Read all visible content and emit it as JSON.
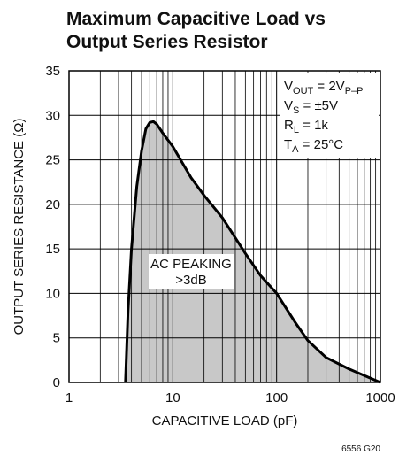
{
  "chart_data": {
    "type": "area",
    "title": [
      "Maximum Capacitive Load vs",
      "Output Series Resistor"
    ],
    "x_label": "CAPACITIVE LOAD (pF)",
    "y_label": "OUTPUT SERIES RESISTANCE (Ω)",
    "x_log": true,
    "grid": true,
    "xlim": [
      1,
      1000
    ],
    "xticks": [
      1,
      10,
      100,
      1000
    ],
    "xminorticks": [
      2,
      3,
      4,
      5,
      6,
      7,
      8,
      9,
      20,
      30,
      40,
      50,
      60,
      70,
      80,
      90,
      200,
      300,
      400,
      500,
      600,
      700,
      800,
      900
    ],
    "ylim": [
      0,
      35
    ],
    "yticks": [
      0,
      5,
      10,
      15,
      20,
      25,
      30,
      35
    ],
    "fill_color": "#c8c8c8",
    "line_color": "#000000",
    "x": [
      3.5,
      3.7,
      4,
      4.5,
      5,
      5.5,
      6,
      6.5,
      7,
      8,
      10,
      15,
      20,
      30,
      50,
      70,
      100,
      150,
      200,
      300,
      500,
      1000
    ],
    "values": [
      0,
      8,
      15,
      22,
      26,
      28.5,
      29.2,
      29.3,
      29,
      28,
      26.5,
      23,
      21,
      18.5,
      14.5,
      12,
      10,
      6.8,
      4.7,
      2.8,
      1.5,
      0
    ],
    "conditions": [
      [
        "V",
        "OUT",
        " = 2V",
        "P–P"
      ],
      [
        "V",
        "S",
        " = ±5V"
      ],
      [
        "R",
        "L",
        " = 1k"
      ],
      [
        "T",
        "A",
        " = 25°C"
      ]
    ],
    "region_label": [
      "AC PEAKING",
      ">3dB"
    ],
    "footnote": "6556 G20"
  }
}
